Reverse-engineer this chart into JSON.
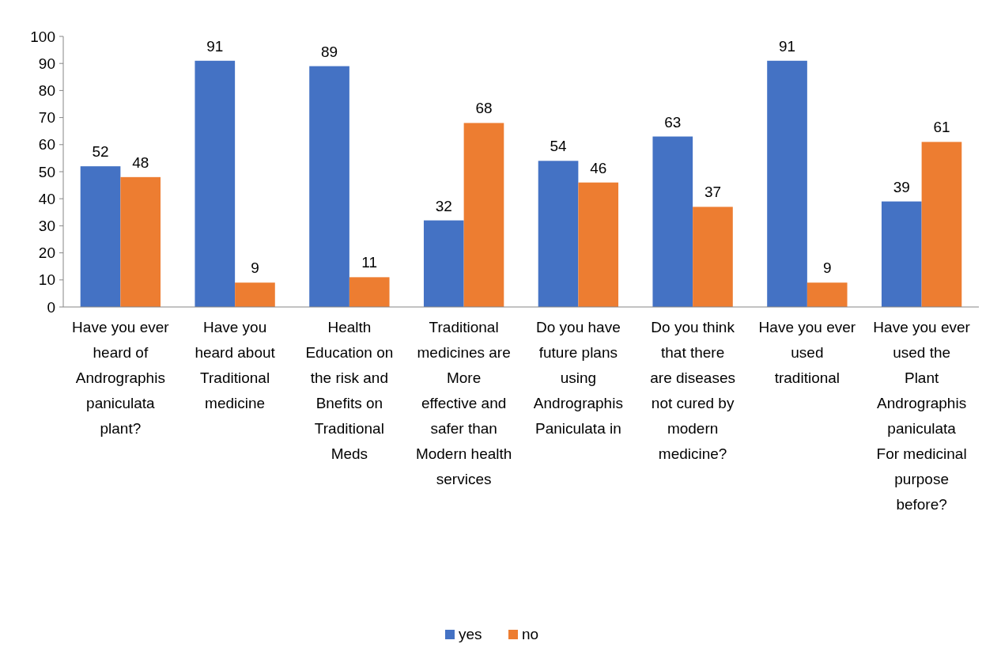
{
  "chart_data": {
    "type": "bar",
    "categories": [
      "Have you ever heard of Andrographis paniculata plant?",
      "Have you heard about Traditional medicine",
      "Health Education on the risk and Bnefits on Traditional Meds",
      "Traditional medicines are More effective and safer than Modern health services",
      "Do you have future plans using Andrographis Paniculata in",
      "Do you think that there are diseases not cured by modern medicine?",
      "Have you ever used traditional",
      "Have you ever used the Plant Andrographis paniculata For medicinal purpose before?"
    ],
    "series": [
      {
        "name": "yes",
        "color": "#4472c4",
        "values": [
          52,
          91,
          89,
          32,
          54,
          63,
          91,
          39
        ]
      },
      {
        "name": "no",
        "color": "#ed7d31",
        "values": [
          48,
          9,
          11,
          68,
          46,
          37,
          9,
          61
        ]
      }
    ],
    "ylim": [
      0,
      100
    ],
    "yticks": [
      0,
      10,
      20,
      30,
      40,
      50,
      60,
      70,
      80,
      90,
      100
    ],
    "data_labels": true,
    "grid": false,
    "legend": "bottom"
  }
}
